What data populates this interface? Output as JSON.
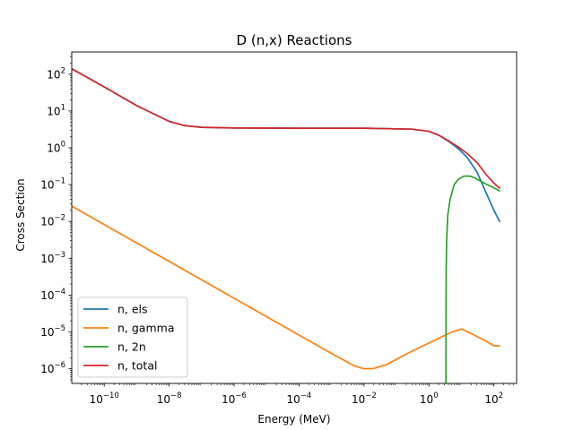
{
  "chart_data": {
    "type": "line",
    "title": "D (n,x) Reactions",
    "xlabel": "Energy (MeV)",
    "ylabel": "Cross Section",
    "xscale": "log",
    "yscale": "log",
    "xlim": [
      1e-11,
      500
    ],
    "ylim": [
      4e-07,
      400
    ],
    "xticks": [
      {
        "base": "10",
        "exp": "−10",
        "value": 1e-10
      },
      {
        "base": "10",
        "exp": "−8",
        "value": 1e-08
      },
      {
        "base": "10",
        "exp": "−6",
        "value": 1e-06
      },
      {
        "base": "10",
        "exp": "−4",
        "value": 0.0001
      },
      {
        "base": "10",
        "exp": "−2",
        "value": 0.01
      },
      {
        "base": "10",
        "exp": "0",
        "value": 1
      },
      {
        "base": "10",
        "exp": "2",
        "value": 100
      }
    ],
    "yticks": [
      {
        "base": "10",
        "exp": "−6",
        "value": 1e-06
      },
      {
        "base": "10",
        "exp": "−5",
        "value": 1e-05
      },
      {
        "base": "10",
        "exp": "−4",
        "value": 0.0001
      },
      {
        "base": "10",
        "exp": "−3",
        "value": 0.001
      },
      {
        "base": "10",
        "exp": "−2",
        "value": 0.01
      },
      {
        "base": "10",
        "exp": "−1",
        "value": 0.1
      },
      {
        "base": "10",
        "exp": "0",
        "value": 1
      },
      {
        "base": "10",
        "exp": "1",
        "value": 10
      },
      {
        "base": "10",
        "exp": "2",
        "value": 100
      }
    ],
    "grid": false,
    "legend_position": "lower-left",
    "series": [
      {
        "name": "n, els",
        "color": "#1f77b4",
        "x": [
          1e-11,
          1e-10,
          1e-09,
          1e-08,
          3e-08,
          1e-07,
          1e-06,
          0.0001,
          0.01,
          0.3,
          1,
          2,
          4,
          8,
          15,
          30,
          60,
          100,
          150
        ],
        "y": [
          140,
          45,
          14,
          5.2,
          4.0,
          3.6,
          3.45,
          3.4,
          3.4,
          3.2,
          2.8,
          2.2,
          1.5,
          0.95,
          0.55,
          0.22,
          0.055,
          0.02,
          0.01
        ]
      },
      {
        "name": "n, gamma",
        "color": "#ff7f0e",
        "x": [
          1e-11,
          1e-09,
          1e-07,
          1e-05,
          0.001,
          0.005,
          0.01,
          0.02,
          0.05,
          0.2,
          1,
          3,
          6,
          10,
          20,
          50,
          100,
          150
        ],
        "y": [
          0.026,
          0.0026,
          0.00026,
          2.6e-05,
          2.6e-06,
          1.2e-06,
          1e-06,
          1.02e-06,
          1.3e-06,
          2.5e-06,
          5e-06,
          8e-06,
          1.05e-05,
          1.2e-05,
          9e-06,
          6e-06,
          4.2e-06,
          4.2e-06
        ]
      },
      {
        "name": "n, 2n",
        "color": "#2ca02c",
        "x": [
          3.34,
          3.34,
          3.36,
          3.4,
          3.5,
          3.8,
          4.5,
          6,
          8,
          12,
          18,
          25,
          35,
          50,
          80,
          150
        ],
        "y": [
          4e-07,
          1e-06,
          5e-05,
          0.0005,
          0.003,
          0.015,
          0.04,
          0.1,
          0.14,
          0.17,
          0.17,
          0.155,
          0.13,
          0.11,
          0.09,
          0.068
        ]
      },
      {
        "name": "n, total",
        "color": "#d62728",
        "x": [
          1e-11,
          1e-10,
          1e-09,
          1e-08,
          3e-08,
          1e-07,
          1e-06,
          0.0001,
          0.01,
          0.3,
          1,
          2,
          4,
          8,
          15,
          30,
          60,
          100,
          150
        ],
        "y": [
          140,
          45,
          14,
          5.2,
          4.0,
          3.6,
          3.45,
          3.4,
          3.4,
          3.2,
          2.8,
          2.2,
          1.55,
          1.05,
          0.7,
          0.4,
          0.18,
          0.11,
          0.08
        ]
      }
    ]
  }
}
